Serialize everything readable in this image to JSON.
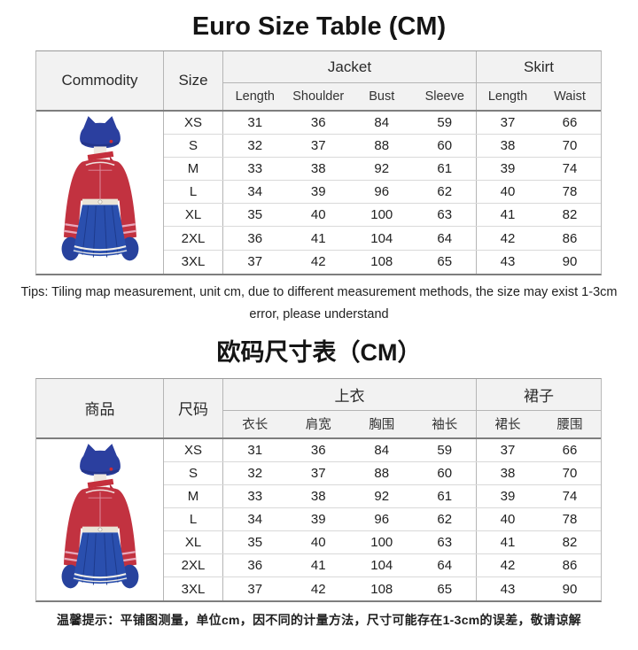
{
  "tables": [
    {
      "title": "Euro Size Table (CM)",
      "columns": {
        "commodity": "Commodity",
        "size": "Size",
        "jacket_group": "Jacket",
        "skirt_group": "Skirt",
        "jacket_sub": [
          "Length",
          "Shoulder",
          "Bust",
          "Sleeve"
        ],
        "skirt_sub": [
          "Length",
          "Waist"
        ]
      },
      "rows": [
        {
          "size": "XS",
          "values": [
            "31",
            "36",
            "84",
            "59",
            "37",
            "66"
          ]
        },
        {
          "size": "S",
          "values": [
            "32",
            "37",
            "88",
            "60",
            "38",
            "70"
          ]
        },
        {
          "size": "M",
          "values": [
            "33",
            "38",
            "92",
            "61",
            "39",
            "74"
          ]
        },
        {
          "size": "L",
          "values": [
            "34",
            "39",
            "96",
            "62",
            "40",
            "78"
          ]
        },
        {
          "size": "XL",
          "values": [
            "35",
            "40",
            "100",
            "63",
            "41",
            "82"
          ]
        },
        {
          "size": "2XL",
          "values": [
            "36",
            "41",
            "104",
            "64",
            "42",
            "86"
          ]
        },
        {
          "size": "3XL",
          "values": [
            "37",
            "42",
            "108",
            "65",
            "43",
            "90"
          ]
        }
      ],
      "tips": "Tips: Tiling map measurement, unit cm, due to different measurement methods, the size may exist 1-3cm error, please understand"
    },
    {
      "title": "欧码尺寸表（CM）",
      "columns": {
        "commodity": "商品",
        "size": "尺码",
        "jacket_group": "上衣",
        "skirt_group": "裙子",
        "jacket_sub": [
          "衣长",
          "肩宽",
          "胸围",
          "袖长"
        ],
        "skirt_sub": [
          "裙长",
          "腰围"
        ]
      },
      "rows": [
        {
          "size": "XS",
          "values": [
            "31",
            "36",
            "84",
            "59",
            "37",
            "66"
          ]
        },
        {
          "size": "S",
          "values": [
            "32",
            "37",
            "88",
            "60",
            "38",
            "70"
          ]
        },
        {
          "size": "M",
          "values": [
            "33",
            "38",
            "92",
            "61",
            "39",
            "74"
          ]
        },
        {
          "size": "L",
          "values": [
            "34",
            "39",
            "96",
            "62",
            "40",
            "78"
          ]
        },
        {
          "size": "XL",
          "values": [
            "35",
            "40",
            "100",
            "63",
            "41",
            "82"
          ]
        },
        {
          "size": "2XL",
          "values": [
            "36",
            "41",
            "104",
            "64",
            "42",
            "86"
          ]
        },
        {
          "size": "3XL",
          "values": [
            "37",
            "42",
            "108",
            "65",
            "43",
            "90"
          ]
        }
      ],
      "tips": "温馨提示：平铺图测量，单位cm，因不同的计量方法，尺寸可能存在1-3cm的误差，敬请谅解"
    }
  ],
  "product": {
    "description": "Cosplay costume set: blue cat-ear beanie with red emblem, red choker, red long-sleeve crop top with pink cuff stripes, white waistband with button, blue pleated skirt with white hem stripes, blue gloves",
    "colors": {
      "hat_blue": "#2b3f9f",
      "skirt_blue": "#2a4fae",
      "glove_blue": "#27429d",
      "top_red": "#c23240",
      "stripe_pink": "#e8a9bc",
      "hem_stripe": "#f3f0ea",
      "waistband": "#eae3d6",
      "header_bg": "#f2f2f2"
    }
  }
}
